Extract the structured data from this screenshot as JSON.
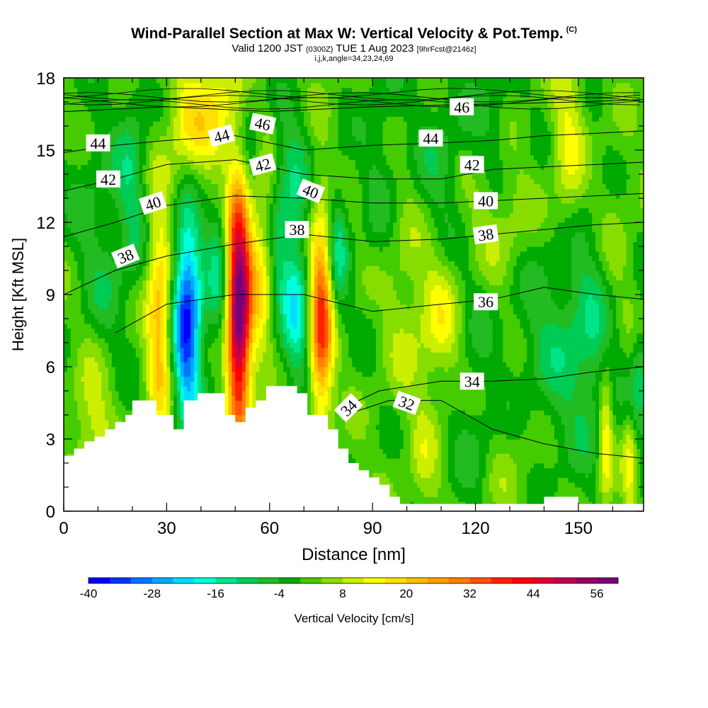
{
  "title": "Wind-Parallel Section at Max W: Vertical Velocity & Pot.Temp.",
  "copyright": "(C)",
  "subtitle_prefix": "Valid 1200 JST",
  "subtitle_utc": "(0300Z)",
  "subtitle_date": "TUE 1 Aug 2023",
  "subtitle_fcst": "[9hrFcst@2146z]",
  "subtitle2": "i,j,k,angle=34,23,24,69",
  "chart_data": {
    "type": "heatmap",
    "xlabel": "Distance [nm]",
    "ylabel": "Height [Kft MSL]",
    "xlim": [
      0,
      169
    ],
    "ylim": [
      0,
      18
    ],
    "x_ticks": [
      0,
      30,
      60,
      90,
      120,
      150
    ],
    "y_ticks": [
      0,
      3,
      6,
      9,
      12,
      15,
      18
    ],
    "colorbar": {
      "label": "Vertical Velocity [cm/s]",
      "ticks": [
        -40,
        -28,
        -16,
        -4,
        8,
        20,
        32,
        44,
        56
      ],
      "levels": [
        -40,
        -36,
        -32,
        -28,
        -24,
        -20,
        -16,
        -12,
        -8,
        -4,
        0,
        4,
        8,
        12,
        16,
        20,
        24,
        28,
        32,
        36,
        40,
        44,
        48,
        52,
        56,
        60
      ],
      "colors": [
        "#0000ff",
        "#0033ff",
        "#0077ff",
        "#00aaff",
        "#00ddff",
        "#00ffdd",
        "#00e58a",
        "#00cc55",
        "#22bb22",
        "#00aa00",
        "#44cc00",
        "#88dd00",
        "#ccee00",
        "#ffff00",
        "#ffe000",
        "#ffc000",
        "#ffa000",
        "#ff8000",
        "#ff5500",
        "#ff2200",
        "#ff0000",
        "#dd0033",
        "#bb0055",
        "#990066",
        "#77007a"
      ]
    },
    "terrain": [
      [
        0,
        2.3
      ],
      [
        3,
        2.3
      ],
      [
        3,
        2.6
      ],
      [
        6,
        2.6
      ],
      [
        6,
        2.9
      ],
      [
        9,
        2.9
      ],
      [
        9,
        3.1
      ],
      [
        12,
        3.1
      ],
      [
        12,
        3.4
      ],
      [
        15,
        3.4
      ],
      [
        15,
        3.7
      ],
      [
        18,
        3.7
      ],
      [
        18,
        4.0
      ],
      [
        20,
        4.0
      ],
      [
        20,
        4.6
      ],
      [
        27,
        4.6
      ],
      [
        27,
        4.0
      ],
      [
        29,
        4.0
      ],
      [
        29,
        4.0
      ],
      [
        32,
        4.0
      ],
      [
        32,
        3.4
      ],
      [
        35,
        3.4
      ],
      [
        35,
        4.6
      ],
      [
        39,
        4.6
      ],
      [
        39,
        4.9
      ],
      [
        47,
        4.9
      ],
      [
        47,
        4.0
      ],
      [
        50,
        4.0
      ],
      [
        50,
        3.7
      ],
      [
        53,
        3.7
      ],
      [
        53,
        4.3
      ],
      [
        56,
        4.3
      ],
      [
        56,
        4.6
      ],
      [
        59,
        4.6
      ],
      [
        59,
        5.2
      ],
      [
        68,
        5.2
      ],
      [
        68,
        4.9
      ],
      [
        71,
        4.9
      ],
      [
        71,
        4.0
      ],
      [
        77,
        4.0
      ],
      [
        77,
        3.4
      ],
      [
        80,
        3.4
      ],
      [
        80,
        2.6
      ],
      [
        83,
        2.6
      ],
      [
        83,
        2.0
      ],
      [
        86,
        2.0
      ],
      [
        86,
        1.7
      ],
      [
        89,
        1.7
      ],
      [
        89,
        1.4
      ],
      [
        92,
        1.4
      ],
      [
        92,
        1.1
      ],
      [
        95,
        1.1
      ],
      [
        95,
        0.6
      ],
      [
        98,
        0.6
      ],
      [
        98,
        0.3
      ],
      [
        140,
        0.3
      ],
      [
        140,
        0.6
      ],
      [
        150,
        0.6
      ],
      [
        150,
        0.3
      ],
      [
        169,
        0.3
      ]
    ],
    "theta_contours": [
      {
        "label": "32",
        "pts": [
          [
            82,
            4.0
          ],
          [
            95,
            4.6
          ],
          [
            110,
            4.6
          ],
          [
            125,
            3.4
          ],
          [
            140,
            2.8
          ],
          [
            155,
            2.4
          ],
          [
            169,
            2.2
          ]
        ]
      },
      {
        "label": "34",
        "pts": [
          [
            80,
            4.2
          ],
          [
            92,
            5.0
          ],
          [
            110,
            5.4
          ],
          [
            125,
            5.4
          ],
          [
            140,
            5.5
          ],
          [
            155,
            5.8
          ],
          [
            169,
            6.0
          ]
        ]
      },
      {
        "label": "36",
        "pts": [
          [
            15,
            7.4
          ],
          [
            30,
            8.6
          ],
          [
            50,
            9.0
          ],
          [
            70,
            9.0
          ],
          [
            90,
            8.3
          ],
          [
            110,
            8.6
          ],
          [
            125,
            8.8
          ],
          [
            140,
            9.3
          ],
          [
            155,
            9.0
          ],
          [
            169,
            8.8
          ]
        ]
      },
      {
        "label": "38",
        "pts": [
          [
            0,
            9.0
          ],
          [
            15,
            10.0
          ],
          [
            30,
            10.6
          ],
          [
            50,
            11.1
          ],
          [
            70,
            11.5
          ],
          [
            90,
            11.2
          ],
          [
            110,
            11.3
          ],
          [
            125,
            11.5
          ],
          [
            140,
            11.7
          ],
          [
            155,
            11.9
          ],
          [
            169,
            12.0
          ]
        ]
      },
      {
        "label": "40",
        "pts": [
          [
            0,
            11.4
          ],
          [
            15,
            12.0
          ],
          [
            30,
            12.7
          ],
          [
            50,
            13.1
          ],
          [
            70,
            13.0
          ],
          [
            90,
            12.8
          ],
          [
            110,
            12.8
          ],
          [
            125,
            12.9
          ],
          [
            140,
            13.0
          ],
          [
            155,
            13.1
          ],
          [
            169,
            13.2
          ]
        ]
      },
      {
        "label": "42",
        "pts": [
          [
            0,
            13.3
          ],
          [
            15,
            13.8
          ],
          [
            30,
            14.4
          ],
          [
            50,
            14.6
          ],
          [
            70,
            14.0
          ],
          [
            90,
            13.8
          ],
          [
            110,
            13.8
          ],
          [
            125,
            14.2
          ],
          [
            140,
            14.3
          ],
          [
            155,
            14.4
          ],
          [
            169,
            14.5
          ]
        ]
      },
      {
        "label": "44",
        "pts": [
          [
            0,
            14.9
          ],
          [
            15,
            15.2
          ],
          [
            30,
            15.4
          ],
          [
            50,
            15.6
          ],
          [
            70,
            15.0
          ],
          [
            90,
            15.2
          ],
          [
            110,
            15.3
          ],
          [
            125,
            15.4
          ],
          [
            140,
            15.6
          ],
          [
            155,
            15.7
          ],
          [
            169,
            15.8
          ]
        ]
      },
      {
        "label": "46",
        "pts": [
          [
            0,
            16.6
          ],
          [
            30,
            16.8
          ],
          [
            60,
            16.6
          ],
          [
            90,
            16.8
          ],
          [
            120,
            16.9
          ],
          [
            150,
            17.0
          ],
          [
            169,
            17.1
          ]
        ]
      }
    ],
    "contour_labels": [
      {
        "text": "44",
        "x": 10,
        "y": 15.3,
        "angle": 0
      },
      {
        "text": "42",
        "x": 13,
        "y": 13.8,
        "angle": 0
      },
      {
        "text": "40",
        "x": 26,
        "y": 12.8,
        "angle": -18
      },
      {
        "text": "38",
        "x": 18,
        "y": 10.6,
        "angle": -22
      },
      {
        "text": "44",
        "x": 46,
        "y": 15.6,
        "angle": -15
      },
      {
        "text": "46",
        "x": 58,
        "y": 16.1,
        "angle": 12
      },
      {
        "text": "42",
        "x": 58,
        "y": 14.4,
        "angle": -15
      },
      {
        "text": "40",
        "x": 72,
        "y": 13.3,
        "angle": 22
      },
      {
        "text": "38",
        "x": 68,
        "y": 11.7,
        "angle": 0
      },
      {
        "text": "46",
        "x": 116,
        "y": 16.8,
        "angle": 0
      },
      {
        "text": "44",
        "x": 107,
        "y": 15.5,
        "angle": 0
      },
      {
        "text": "42",
        "x": 119,
        "y": 14.4,
        "angle": 0
      },
      {
        "text": "40",
        "x": 123,
        "y": 12.9,
        "angle": 0
      },
      {
        "text": "38",
        "x": 123,
        "y": 11.5,
        "angle": -8
      },
      {
        "text": "36",
        "x": 123,
        "y": 8.7,
        "angle": 0
      },
      {
        "text": "34",
        "x": 119,
        "y": 5.4,
        "angle": 0
      },
      {
        "text": "32",
        "x": 100,
        "y": 4.5,
        "angle": 20
      },
      {
        "text": "34",
        "x": 83,
        "y": 4.3,
        "angle": -45
      }
    ],
    "vertical_velocity_features": [
      {
        "x": 28,
        "y": 8,
        "sx": 2.6,
        "sy": 3.4,
        "w": 22
      },
      {
        "x": 36,
        "y": 8,
        "sx": 3,
        "sy": 3.2,
        "w": -38
      },
      {
        "x": 51,
        "y": 8.5,
        "sx": 2.4,
        "sy": 3.6,
        "w": 60
      },
      {
        "x": 45,
        "y": 10,
        "sx": 2.5,
        "sy": 2.5,
        "w": -12
      },
      {
        "x": 57,
        "y": 11,
        "sx": 2.8,
        "sy": 4,
        "w": 14
      },
      {
        "x": 63,
        "y": 11,
        "sx": 2.5,
        "sy": 3,
        "w": -8
      },
      {
        "x": 68,
        "y": 8.5,
        "sx": 3,
        "sy": 2.5,
        "w": -18
      },
      {
        "x": 75,
        "y": 8,
        "sx": 2.4,
        "sy": 3,
        "w": 36
      },
      {
        "x": 80,
        "y": 11,
        "sx": 2.2,
        "sy": 2,
        "w": -14
      },
      {
        "x": 36,
        "y": 16,
        "sx": 4,
        "sy": 2,
        "w": 14
      },
      {
        "x": 55,
        "y": 15,
        "sx": 3,
        "sy": 2,
        "w": -12
      },
      {
        "x": 45,
        "y": 16.5,
        "sx": 4,
        "sy": 1.8,
        "w": 14
      },
      {
        "x": 67,
        "y": 14,
        "sx": 3,
        "sy": 1.8,
        "w": -10
      },
      {
        "x": 20,
        "y": 14,
        "sx": 3,
        "sy": 3,
        "w": -10
      },
      {
        "x": 10,
        "y": 13,
        "sx": 6,
        "sy": 2.5,
        "w": -6
      },
      {
        "x": 92,
        "y": 14,
        "sx": 4,
        "sy": 4,
        "w": -6
      },
      {
        "x": 110,
        "y": 14,
        "sx": 6,
        "sy": 3,
        "w": -8
      },
      {
        "x": 125,
        "y": 16.5,
        "sx": 4,
        "sy": 2,
        "w": -6
      },
      {
        "x": 147,
        "y": 15,
        "sx": 3.5,
        "sy": 3,
        "w": 12
      },
      {
        "x": 128,
        "y": 12,
        "sx": 10,
        "sy": 2,
        "w": 7
      },
      {
        "x": 100,
        "y": 9,
        "sx": 6,
        "sy": 3,
        "w": 7
      },
      {
        "x": 110,
        "y": 8,
        "sx": 4,
        "sy": 2,
        "w": 10
      },
      {
        "x": 145,
        "y": 8,
        "sx": 10,
        "sy": 4,
        "w": -10
      },
      {
        "x": 155,
        "y": 7,
        "sx": 5,
        "sy": 3,
        "w": -8
      },
      {
        "x": 120,
        "y": 8.5,
        "sx": 4,
        "sy": 2,
        "w": -4
      },
      {
        "x": 160,
        "y": 10,
        "sx": 5,
        "sy": 3,
        "w": 6
      },
      {
        "x": 158,
        "y": 3,
        "sx": 1.5,
        "sy": 2,
        "w": 16
      },
      {
        "x": 168,
        "y": 5.5,
        "sx": 2,
        "sy": 2,
        "w": -10
      },
      {
        "x": 165,
        "y": 2,
        "sx": 1.5,
        "sy": 1.5,
        "w": 12
      },
      {
        "x": 12,
        "y": 9,
        "sx": 5,
        "sy": 2,
        "w": -5
      },
      {
        "x": 8,
        "y": 3.5,
        "sx": 4,
        "sy": 2,
        "w": 10
      },
      {
        "x": 120,
        "y": 3,
        "sx": 5,
        "sy": 2,
        "w": -6
      },
      {
        "x": 130,
        "y": 2,
        "sx": 6,
        "sy": 2,
        "w": 4
      },
      {
        "x": 105,
        "y": 2,
        "sx": 3,
        "sy": 2,
        "w": 6
      }
    ]
  }
}
